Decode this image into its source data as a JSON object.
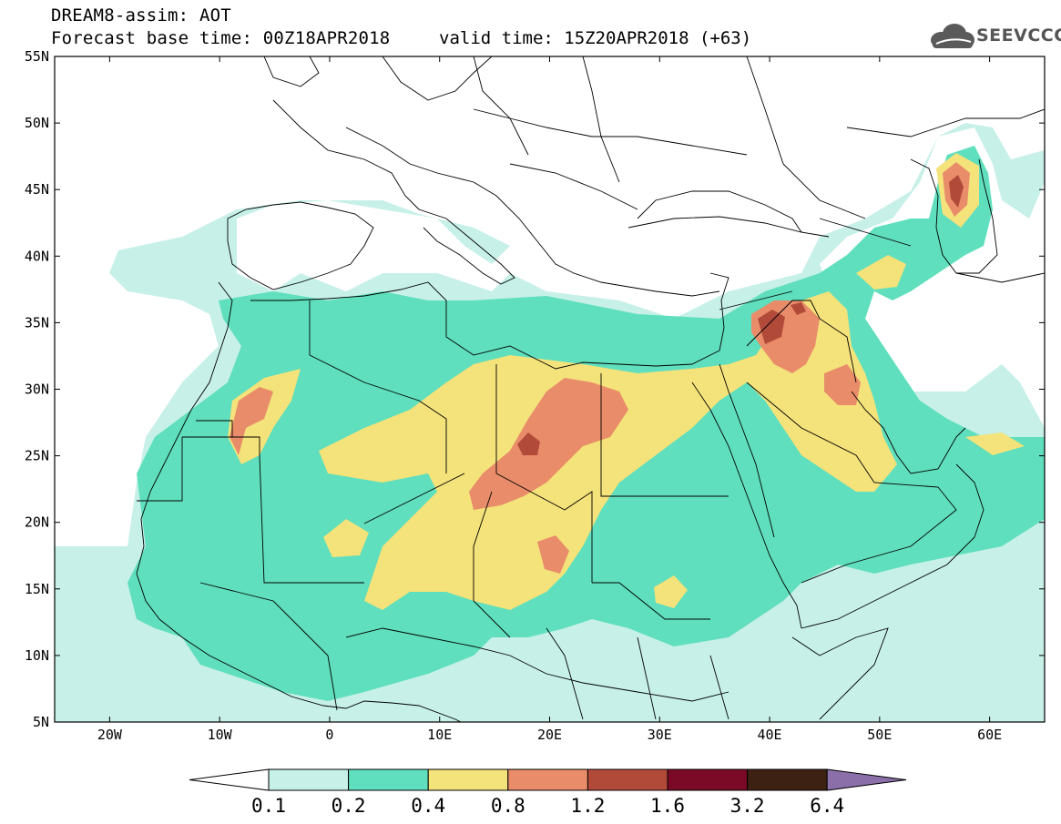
{
  "header": {
    "line1": "DREAM8-assim: AOT",
    "line2": "Forecast base time: 00Z18APR2018",
    "valid": "valid time: 15Z20APR2018 (+63)"
  },
  "logo": {
    "text": "SEEVCCC",
    "icon": "cloud-logo-icon"
  },
  "map": {
    "lon_range": [
      -25,
      65
    ],
    "lat_range": [
      5,
      55
    ],
    "lat_ticks": [
      {
        "value": 55,
        "label": "55N"
      },
      {
        "value": 50,
        "label": "50N"
      },
      {
        "value": 45,
        "label": "45N"
      },
      {
        "value": 40,
        "label": "40N"
      },
      {
        "value": 35,
        "label": "35N"
      },
      {
        "value": 30,
        "label": "30N"
      },
      {
        "value": 25,
        "label": "25N"
      },
      {
        "value": 20,
        "label": "20N"
      },
      {
        "value": 15,
        "label": "15N"
      },
      {
        "value": 10,
        "label": "10N"
      },
      {
        "value": 5,
        "label": "5N"
      }
    ],
    "lon_ticks": [
      {
        "value": -20,
        "label": "20W"
      },
      {
        "value": -10,
        "label": "10W"
      },
      {
        "value": 0,
        "label": "0"
      },
      {
        "value": 10,
        "label": "10E"
      },
      {
        "value": 20,
        "label": "20E"
      },
      {
        "value": 30,
        "label": "30E"
      },
      {
        "value": 40,
        "label": "40E"
      },
      {
        "value": 50,
        "label": "50E"
      },
      {
        "value": 60,
        "label": "60E"
      }
    ]
  },
  "colorbar": {
    "labels": [
      "0.1",
      "0.2",
      "0.4",
      "0.8",
      "1.2",
      "1.6",
      "3.2",
      "6.4"
    ],
    "colors": [
      "#ffffff",
      "#c6f0e8",
      "#5fdfbd",
      "#f4e27a",
      "#e98c6a",
      "#b24a3a",
      "#7a0a26",
      "#3d2213",
      "#8b6fa8"
    ]
  }
}
